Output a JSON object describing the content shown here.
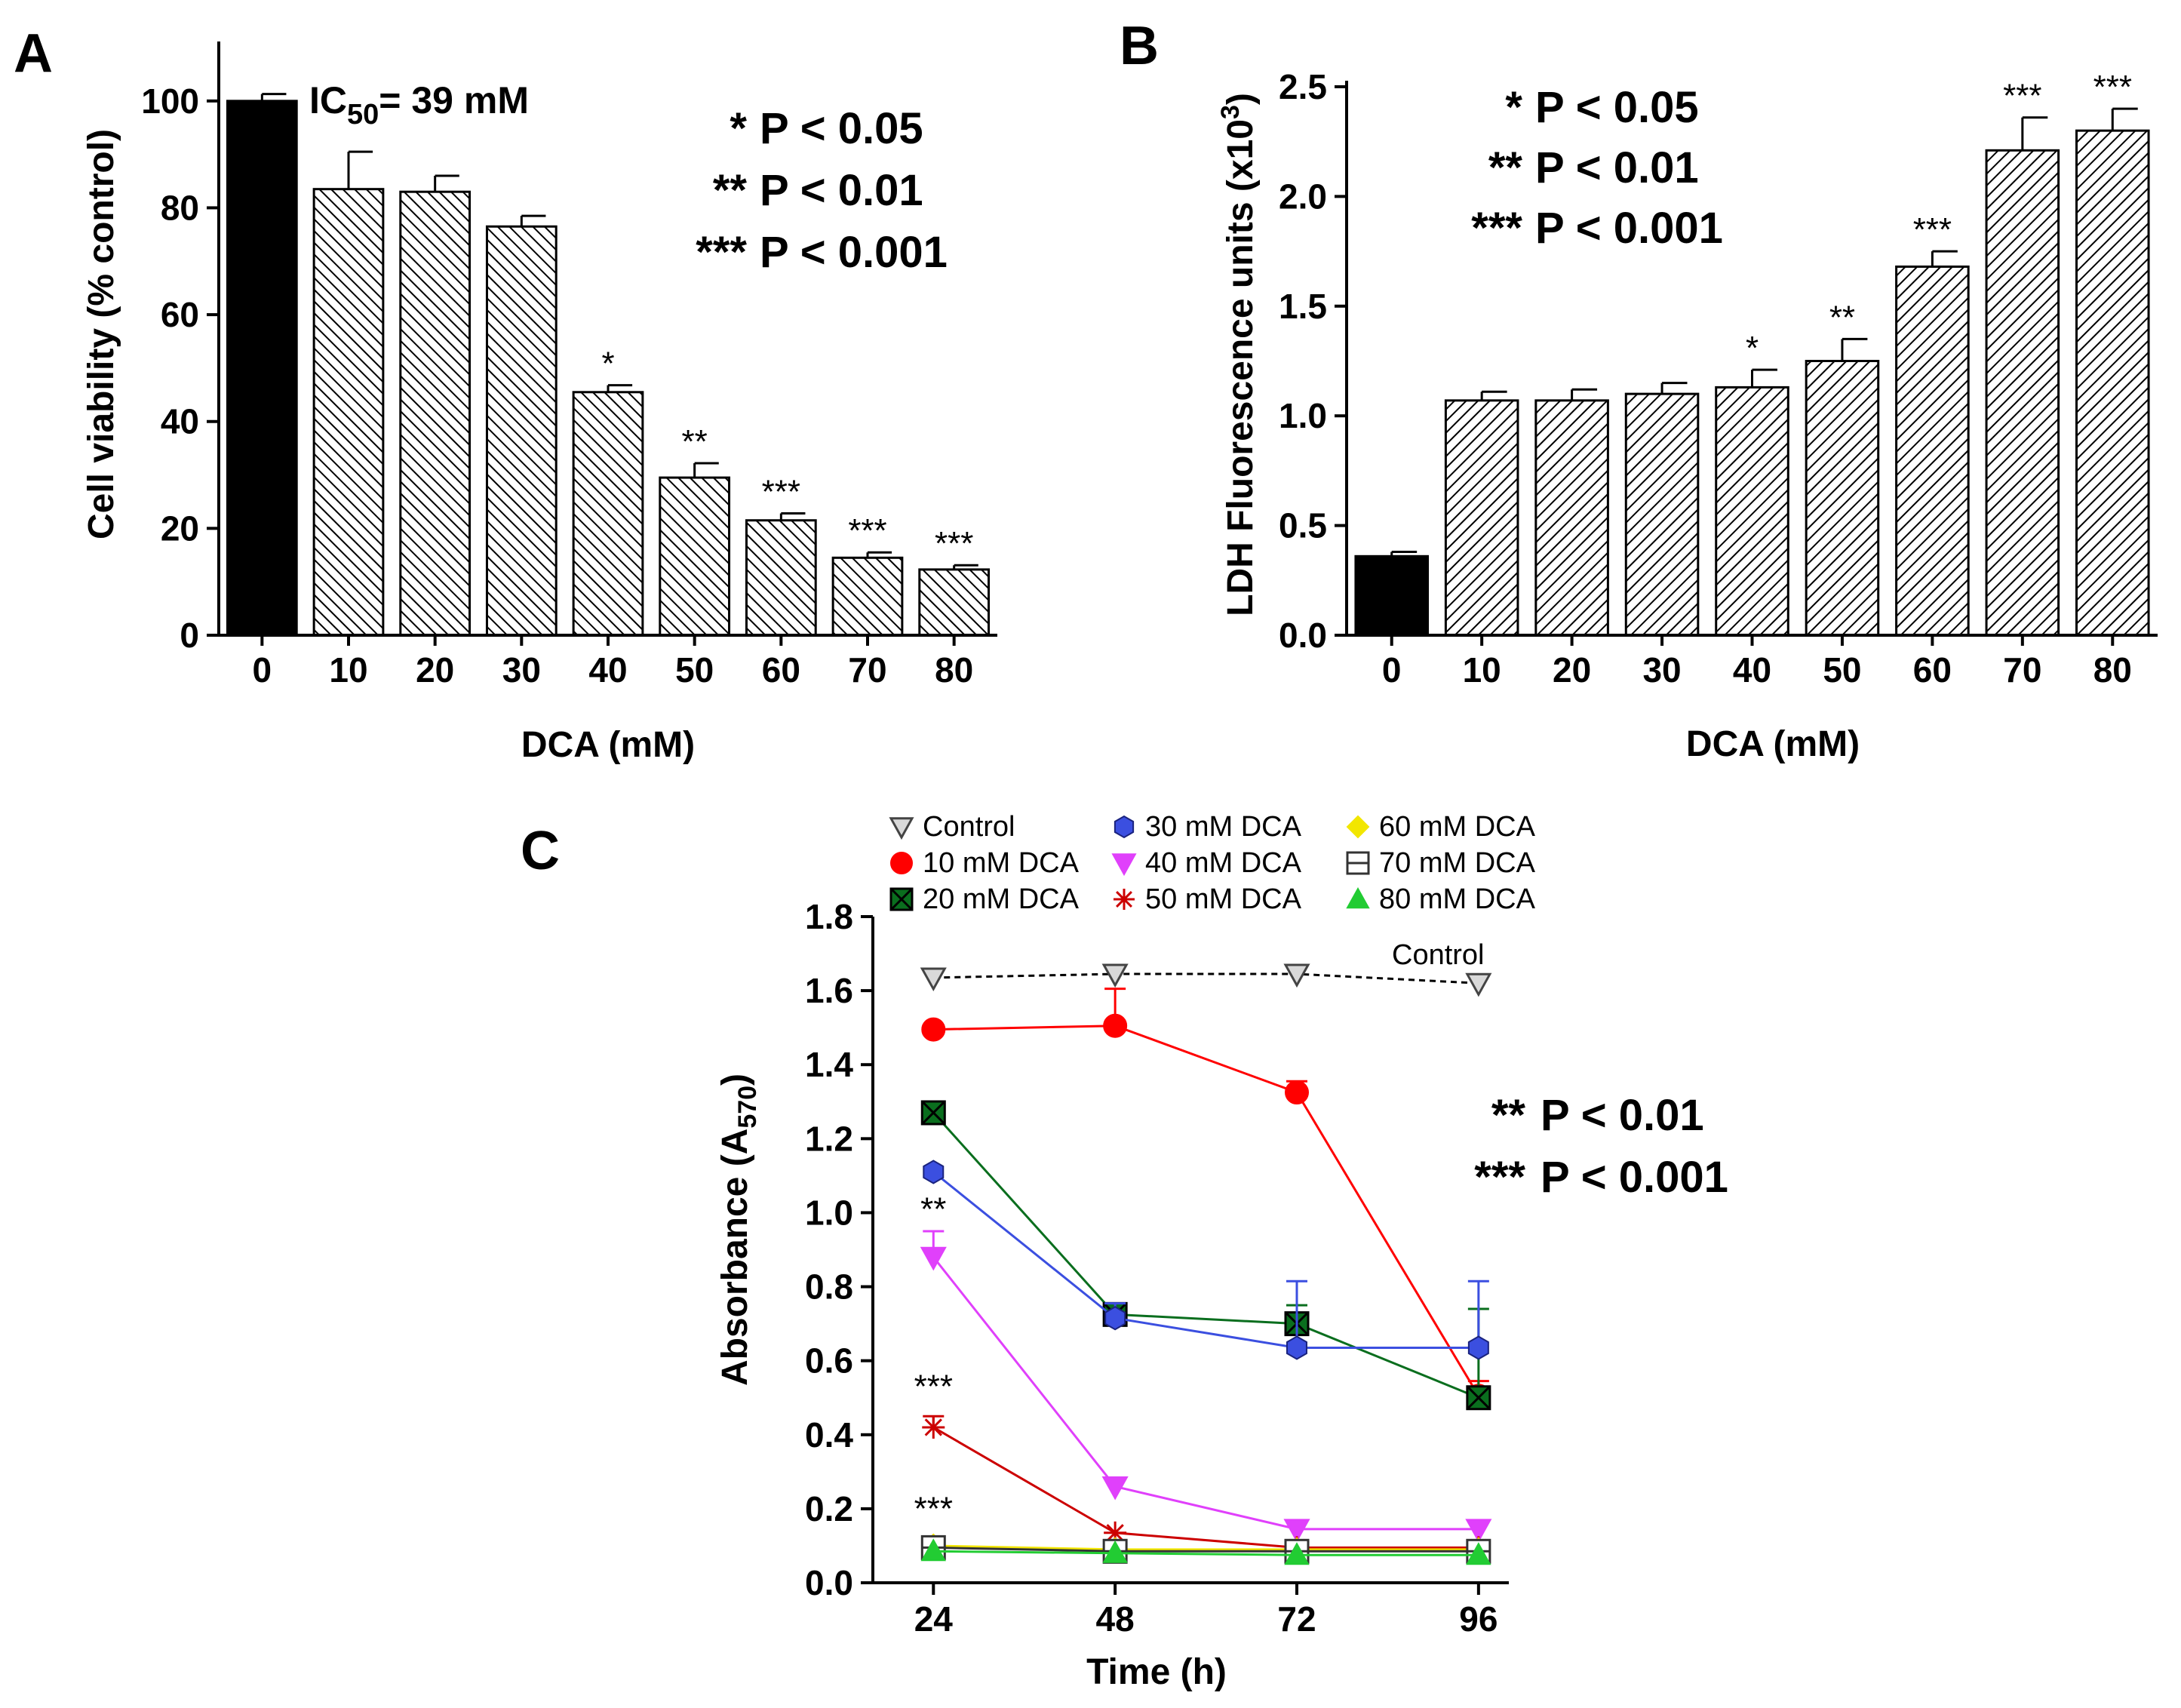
{
  "chart_data": [
    {
      "panel": "A",
      "type": "bar",
      "categories": [
        "0",
        "10",
        "20",
        "30",
        "40",
        "50",
        "60",
        "70",
        "80"
      ],
      "values": [
        100,
        83.5,
        83.0,
        76.5,
        45.5,
        29.5,
        21.5,
        14.5,
        12.3
      ],
      "errors": [
        1.3,
        7.0,
        3.0,
        2.0,
        1.3,
        2.7,
        1.3,
        1.0,
        0.8
      ],
      "significance": [
        "",
        "",
        "",
        "",
        "*",
        "**",
        "***",
        "***",
        "***"
      ],
      "xlabel": "DCA (mM)",
      "ylabel": "Cell viability (% control)",
      "ylim": [
        0,
        110
      ],
      "yticks": [
        "0",
        "20",
        "40",
        "60",
        "80",
        "100"
      ],
      "annotation": {
        "prefix": "IC",
        "sub": "50",
        "rest": "= 39 mM"
      },
      "pvalue_legend": [
        {
          "stars": "*",
          "text": "P <  0.05"
        },
        {
          "stars": "**",
          "text": "P < 0.01"
        },
        {
          "stars": "***",
          "text": "P < 0.001"
        }
      ]
    },
    {
      "panel": "B",
      "type": "bar",
      "categories": [
        "0",
        "10",
        "20",
        "30",
        "40",
        "50",
        "60",
        "70",
        "80"
      ],
      "values": [
        0.36,
        1.07,
        1.07,
        1.1,
        1.13,
        1.25,
        1.68,
        2.21,
        2.3
      ],
      "errors": [
        0.02,
        0.04,
        0.05,
        0.05,
        0.08,
        0.1,
        0.07,
        0.15,
        0.1
      ],
      "significance": [
        "",
        "",
        "",
        "",
        "*",
        "**",
        "***",
        "***",
        "***"
      ],
      "xlabel": "DCA (mM)",
      "ylabel": {
        "main": "LDH Fluorescence units (x10",
        "sup": "3",
        "close": ")"
      },
      "ylim": [
        0,
        2.5
      ],
      "yticks": [
        "0.0",
        "0.5",
        "1.0",
        "1.5",
        "2.0",
        "2.5"
      ],
      "pvalue_legend": [
        {
          "stars": "*",
          "text": "P <  0.05"
        },
        {
          "stars": "**",
          "text": "P < 0.01"
        },
        {
          "stars": "***",
          "text": "P < 0.001"
        }
      ]
    },
    {
      "panel": "C",
      "type": "line",
      "x": [
        24,
        48,
        72,
        96
      ],
      "xticks": [
        "24",
        "48",
        "72",
        "96"
      ],
      "xlim": [
        16,
        100
      ],
      "ylim": [
        0,
        1.8
      ],
      "yticks": [
        "0.0",
        "0.2",
        "0.4",
        "0.6",
        "0.8",
        "1.0",
        "1.2",
        "1.4",
        "1.6",
        "1.8"
      ],
      "xlabel": "Time (h)",
      "ylabel": {
        "main": "Absorbance (A",
        "sub": "570",
        "close": ")"
      },
      "series": [
        {
          "name": "Control",
          "values": [
            1.635,
            1.645,
            1.645,
            1.62
          ],
          "errors": [
            0,
            0,
            0,
            0
          ],
          "color": "#000000",
          "marker": "triangle-down-open",
          "dashed": true
        },
        {
          "name": "10 mM DCA",
          "values": [
            1.495,
            1.505,
            1.325,
            0.505
          ],
          "errors": [
            0,
            0.1,
            0.03,
            0.04
          ],
          "color": "#ff0000",
          "marker": "circle"
        },
        {
          "name": "20 mM DCA",
          "values": [
            1.27,
            0.725,
            0.7,
            0.5
          ],
          "errors": [
            0,
            0.03,
            0.05,
            0.24
          ],
          "color": "#0a6e1e",
          "marker": "square-x"
        },
        {
          "name": "30 mM DCA",
          "values": [
            1.11,
            0.715,
            0.635,
            0.635
          ],
          "errors": [
            0,
            0.04,
            0.18,
            0.18
          ],
          "color": "#3b4fe0",
          "marker": "hexagon"
        },
        {
          "name": "40 mM DCA",
          "values": [
            0.88,
            0.26,
            0.145,
            0.145
          ],
          "errors": [
            0.07,
            0,
            0,
            0
          ],
          "color": "#e040fb",
          "marker": "triangle-down"
        },
        {
          "name": "50 mM DCA",
          "values": [
            0.42,
            0.135,
            0.095,
            0.095
          ],
          "errors": [
            0.03,
            0,
            0,
            0
          ],
          "color": "#cc0000",
          "marker": "asterisk"
        },
        {
          "name": "60 mM DCA",
          "values": [
            0.1,
            0.09,
            0.09,
            0.09
          ],
          "errors": [
            0,
            0,
            0,
            0
          ],
          "color": "#f2e600",
          "marker": "diamond"
        },
        {
          "name": "70 mM DCA",
          "values": [
            0.095,
            0.085,
            0.085,
            0.085
          ],
          "errors": [
            0,
            0,
            0,
            0
          ],
          "color": "#333333",
          "marker": "square-line"
        },
        {
          "name": "80 mM DCA",
          "values": [
            0.085,
            0.08,
            0.075,
            0.075
          ],
          "errors": [
            0,
            0,
            0,
            0
          ],
          "color": "#22cc33",
          "marker": "triangle-up"
        }
      ],
      "line_label": "Control",
      "significance": [
        {
          "series": "40 mM DCA",
          "x": 24,
          "y": 0.98,
          "text": "**"
        },
        {
          "series": "50 mM DCA",
          "x": 24,
          "y": 0.5,
          "text": "***"
        },
        {
          "series": "60 mM DCA",
          "x": 24,
          "y": 0.17,
          "text": "***"
        }
      ],
      "pvalue_legend": [
        {
          "stars": "**",
          "text": "P < 0.01"
        },
        {
          "stars": "***",
          "text": "P < 0.001"
        }
      ]
    }
  ]
}
